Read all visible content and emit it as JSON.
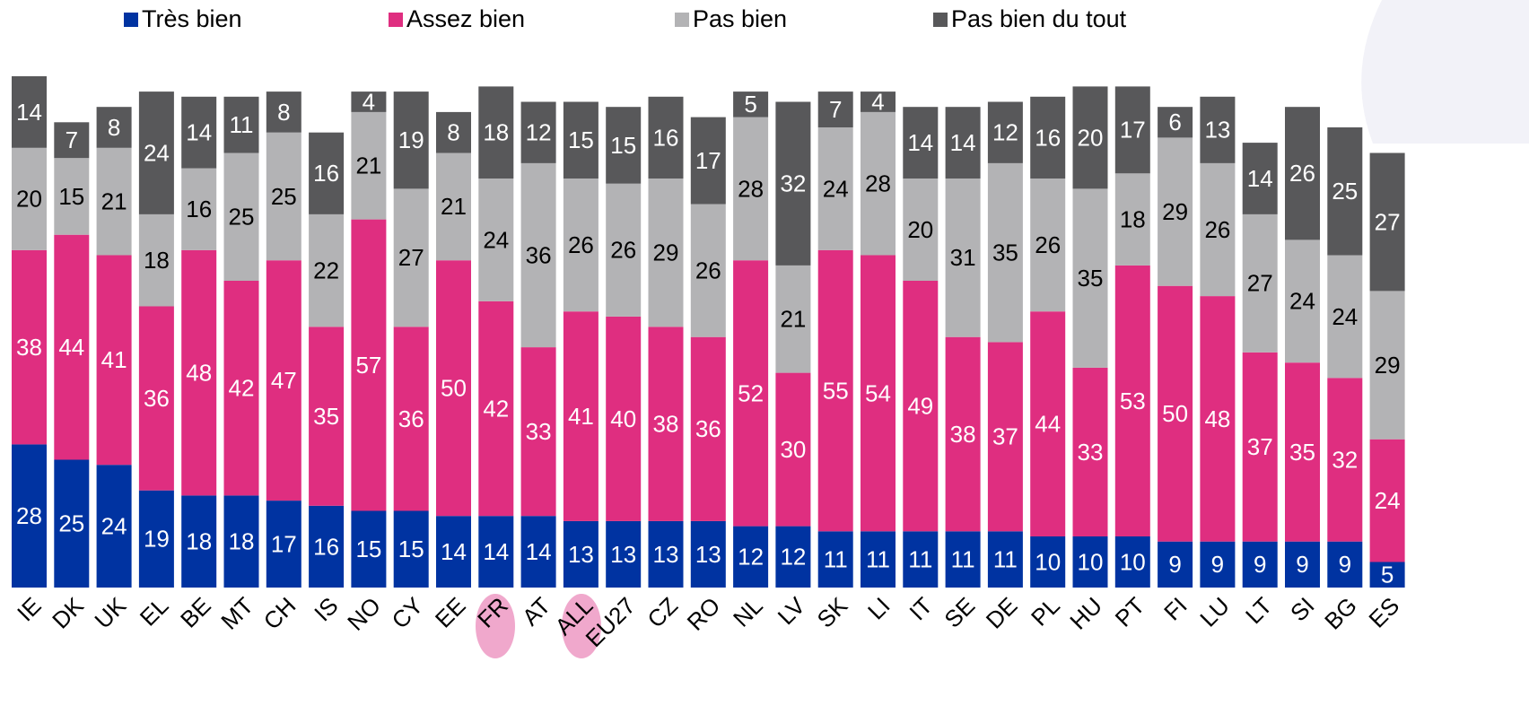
{
  "chart_data": {
    "type": "stacked_bar",
    "categories": [
      "IE",
      "DK",
      "UK",
      "EL",
      "BE",
      "MT",
      "CH",
      "IS",
      "NO",
      "CY",
      "EE",
      "FR",
      "AT",
      "ALL",
      "EU27",
      "CZ",
      "RO",
      "NL",
      "LV",
      "SK",
      "LI",
      "IT",
      "SE",
      "DE",
      "PL",
      "HU",
      "PT",
      "FI",
      "LU",
      "LT",
      "SI",
      "BG",
      "ES"
    ],
    "series": [
      {
        "name": "Très bien",
        "color": "#0033a1",
        "values": [
          28,
          25,
          24,
          19,
          18,
          18,
          17,
          16,
          15,
          15,
          14,
          14,
          14,
          13,
          13,
          13,
          13,
          12,
          12,
          11,
          11,
          11,
          11,
          11,
          10,
          10,
          10,
          9,
          9,
          9,
          9,
          9,
          5
        ]
      },
      {
        "name": "Assez bien",
        "color": "#df2e80",
        "values": [
          38,
          44,
          41,
          36,
          48,
          42,
          47,
          35,
          57,
          36,
          50,
          42,
          33,
          41,
          40,
          38,
          36,
          52,
          30,
          55,
          54,
          49,
          38,
          37,
          44,
          33,
          53,
          50,
          48,
          37,
          35,
          32,
          24
        ]
      },
      {
        "name": "Pas bien",
        "color": "#b3b3b5",
        "values": [
          20,
          15,
          21,
          18,
          16,
          25,
          25,
          22,
          21,
          27,
          21,
          24,
          36,
          26,
          26,
          29,
          26,
          28,
          21,
          24,
          28,
          20,
          31,
          35,
          26,
          35,
          18,
          29,
          26,
          27,
          24,
          24,
          29
        ]
      },
      {
        "name": "Pas bien du tout",
        "color": "#58585a",
        "values": [
          14,
          7,
          8,
          24,
          14,
          11,
          8,
          16,
          4,
          19,
          8,
          18,
          12,
          15,
          15,
          16,
          17,
          5,
          32,
          7,
          4,
          14,
          14,
          12,
          16,
          20,
          17,
          6,
          13,
          14,
          26,
          25,
          27
        ]
      }
    ],
    "ylim": [
      0,
      100
    ]
  }
}
